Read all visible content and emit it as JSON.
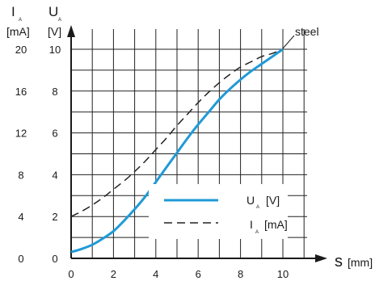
{
  "chart_data": {
    "type": "line",
    "left_axis_current": {
      "symbol": "I",
      "subscript": "A",
      "unit": "[mA]",
      "ticks": [
        "0",
        "4",
        "8",
        "12",
        "16",
        "20"
      ]
    },
    "left_axis_voltage": {
      "symbol": "U",
      "subscript": "A",
      "unit": "[V]",
      "ticks": [
        "0",
        "2",
        "4",
        "6",
        "8",
        "10"
      ]
    },
    "x_axis": {
      "symbol": "s",
      "unit": "[mm]",
      "ticks": [
        "0",
        "2",
        "4",
        "6",
        "8",
        "10"
      ],
      "range": [
        0,
        10
      ]
    },
    "y_range_voltage": [
      0,
      10
    ],
    "y_range_current": [
      0,
      20
    ],
    "grid": true,
    "annotation": "steel",
    "legend_position": "lower-right",
    "series": [
      {
        "symbol": "U",
        "subscript": "A",
        "unit": "[V]",
        "style": "solid",
        "color": "#1f9ad6",
        "axis": "voltage",
        "x": [
          0,
          0.5,
          1,
          1.5,
          2,
          2.5,
          3,
          3.5,
          4,
          4.5,
          5,
          5.5,
          6,
          6.5,
          7,
          7.5,
          8,
          8.5,
          9,
          9.5,
          10
        ],
        "y": [
          0.3,
          0.45,
          0.65,
          0.95,
          1.3,
          1.8,
          2.35,
          2.95,
          3.65,
          4.35,
          5.05,
          5.75,
          6.4,
          7.0,
          7.6,
          8.1,
          8.55,
          8.95,
          9.3,
          9.65,
          10.0
        ]
      },
      {
        "symbol": "I",
        "subscript": "A",
        "unit": "[mA]",
        "style": "dashed",
        "color": "#222222",
        "axis": "current",
        "x": [
          0,
          0.5,
          1,
          1.5,
          2,
          2.5,
          3,
          3.5,
          4,
          4.5,
          5,
          5.5,
          6,
          6.5,
          7,
          7.5,
          8,
          8.5,
          9,
          9.5,
          10
        ],
        "y": [
          4.0,
          4.5,
          5.1,
          5.8,
          6.6,
          7.4,
          8.3,
          9.3,
          10.4,
          11.5,
          12.7,
          13.8,
          14.9,
          15.9,
          16.8,
          17.6,
          18.3,
          18.8,
          19.3,
          19.6,
          20.0
        ]
      }
    ]
  }
}
